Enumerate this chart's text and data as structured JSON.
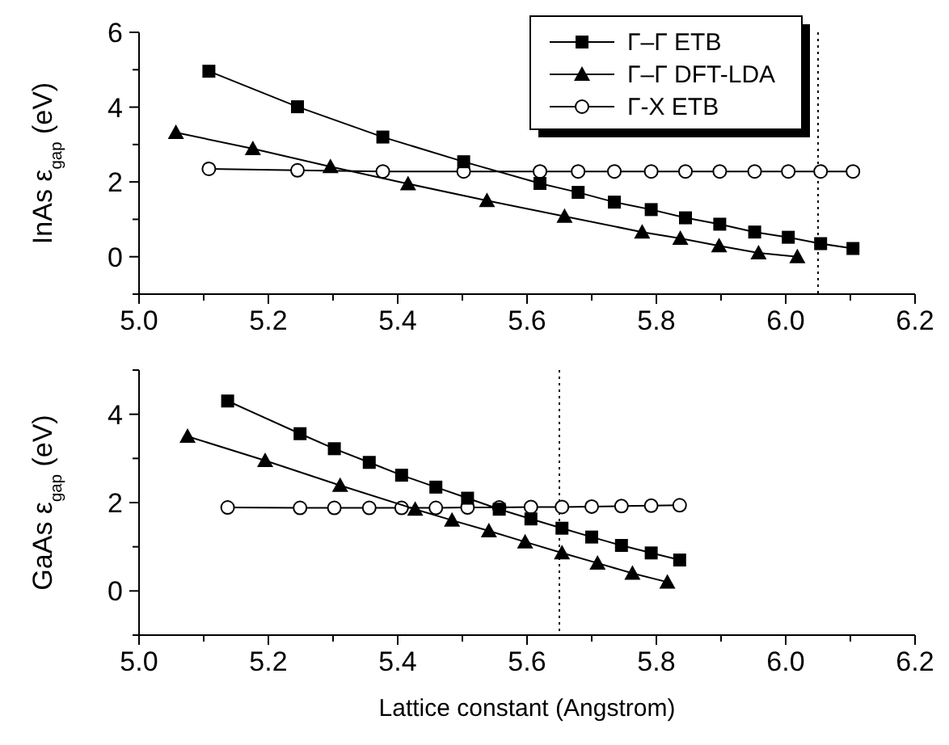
{
  "chart_data": [
    {
      "type": "line",
      "ylabel": "InAs  ε$_{gap}$  (eV)",
      "xlim": [
        5.0,
        6.2
      ],
      "xticks": [
        {
          "value": 5.0,
          "label": "5.0"
        },
        {
          "value": 5.1,
          "label": null
        },
        {
          "value": 5.2,
          "label": "5.2"
        },
        {
          "value": 5.3,
          "label": null
        },
        {
          "value": 5.4,
          "label": "5.4"
        },
        {
          "value": 5.5,
          "label": null
        },
        {
          "value": 5.6,
          "label": "5.6"
        },
        {
          "value": 5.7,
          "label": null
        },
        {
          "value": 5.8,
          "label": "5.8"
        },
        {
          "value": 5.9,
          "label": null
        },
        {
          "value": 6.0,
          "label": "6.0"
        },
        {
          "value": 6.1,
          "label": null
        },
        {
          "value": 6.2,
          "label": "6.2"
        }
      ],
      "ylim": [
        -1,
        6
      ],
      "yticks": [
        {
          "value": -1,
          "label": null
        },
        0,
        {
          "value": 1,
          "label": null
        },
        2,
        {
          "value": 3,
          "label": null
        },
        4,
        {
          "value": 5,
          "label": null
        },
        6
      ],
      "legend": "top right",
      "line_style": "solid",
      "ref_lines": [
        {
          "axis": "x",
          "value": 6.05,
          "label": null,
          "color": "#000000",
          "line_style": "dotted"
        }
      ],
      "series": [
        {
          "name": "Γ–Γ  ETB",
          "color": "#000000",
          "marker": "square",
          "x": [
            5.108,
            5.245,
            5.377,
            5.502,
            5.62,
            5.679,
            5.735,
            5.792,
            5.845,
            5.898,
            5.952,
            6.004,
            6.054,
            6.104
          ],
          "values": [
            4.96,
            4.01,
            3.2,
            2.54,
            1.96,
            1.72,
            1.46,
            1.26,
            1.04,
            0.87,
            0.66,
            0.52,
            0.35,
            0.22
          ]
        },
        {
          "name": "Γ–Γ  DFT-LDA",
          "color": "#000000",
          "marker": "triangle",
          "x": [
            5.057,
            5.176,
            5.296,
            5.416,
            5.538,
            5.658,
            5.778,
            5.837,
            5.897,
            5.958,
            6.018
          ],
          "values": [
            3.32,
            2.89,
            2.41,
            1.95,
            1.5,
            1.08,
            0.66,
            0.49,
            0.29,
            0.1,
            0.0
          ]
        },
        {
          "name": "Γ-X  ETB",
          "color": "#000000",
          "marker": "circle",
          "x": [
            5.108,
            5.245,
            5.377,
            5.502,
            5.62,
            5.679,
            5.735,
            5.792,
            5.845,
            5.898,
            5.952,
            6.004,
            6.054,
            6.104
          ],
          "values": [
            2.35,
            2.31,
            2.28,
            2.28,
            2.28,
            2.28,
            2.28,
            2.28,
            2.28,
            2.28,
            2.28,
            2.28,
            2.28,
            2.28
          ]
        }
      ]
    },
    {
      "type": "line",
      "ylabel": "GaAs  ε$_{gap}$  (eV)",
      "xlabel": "Lattice constant  (Angstrom)",
      "xlim": [
        5.0,
        6.2
      ],
      "xticks": [
        {
          "value": 5.0,
          "label": "5.0"
        },
        {
          "value": 5.1,
          "label": null
        },
        {
          "value": 5.2,
          "label": "5.2"
        },
        {
          "value": 5.3,
          "label": null
        },
        {
          "value": 5.4,
          "label": "5.4"
        },
        {
          "value": 5.5,
          "label": null
        },
        {
          "value": 5.6,
          "label": "5.6"
        },
        {
          "value": 5.7,
          "label": null
        },
        {
          "value": 5.8,
          "label": "5.8"
        },
        {
          "value": 5.9,
          "label": null
        },
        {
          "value": 6.0,
          "label": "6.0"
        },
        {
          "value": 6.1,
          "label": null
        },
        {
          "value": 6.2,
          "label": "6.2"
        }
      ],
      "ylim": [
        -1,
        5
      ],
      "yticks": [
        {
          "value": -1,
          "label": null
        },
        0,
        {
          "value": 1,
          "label": null
        },
        2,
        {
          "value": 3,
          "label": null
        },
        4,
        {
          "value": 5,
          "label": null
        }
      ],
      "line_style": "solid",
      "ref_lines": [
        {
          "axis": "x",
          "value": 5.65,
          "label": null,
          "color": "#000000",
          "line_style": "dotted"
        }
      ],
      "series": [
        {
          "color": "#000000",
          "marker": "square",
          "x": [
            5.137,
            5.249,
            5.302,
            5.356,
            5.406,
            5.459,
            5.508,
            5.557,
            5.606,
            5.654,
            5.7,
            5.746,
            5.792,
            5.836
          ],
          "values": [
            4.3,
            3.56,
            3.22,
            2.91,
            2.62,
            2.35,
            2.1,
            1.85,
            1.63,
            1.42,
            1.22,
            1.03,
            0.86,
            0.7
          ]
        },
        {
          "color": "#000000",
          "marker": "triangle",
          "x": [
            5.075,
            5.195,
            5.311,
            5.427,
            5.484,
            5.541,
            5.597,
            5.654,
            5.709,
            5.763,
            5.817
          ],
          "values": [
            3.5,
            2.95,
            2.39,
            1.85,
            1.6,
            1.36,
            1.11,
            0.86,
            0.63,
            0.4,
            0.2
          ]
        },
        {
          "color": "#000000",
          "marker": "circle",
          "x": [
            5.137,
            5.249,
            5.302,
            5.356,
            5.406,
            5.459,
            5.508,
            5.557,
            5.606,
            5.654,
            5.7,
            5.746,
            5.792,
            5.836
          ],
          "values": [
            1.89,
            1.88,
            1.88,
            1.88,
            1.88,
            1.88,
            1.89,
            1.89,
            1.9,
            1.9,
            1.91,
            1.92,
            1.93,
            1.94
          ]
        }
      ]
    }
  ]
}
